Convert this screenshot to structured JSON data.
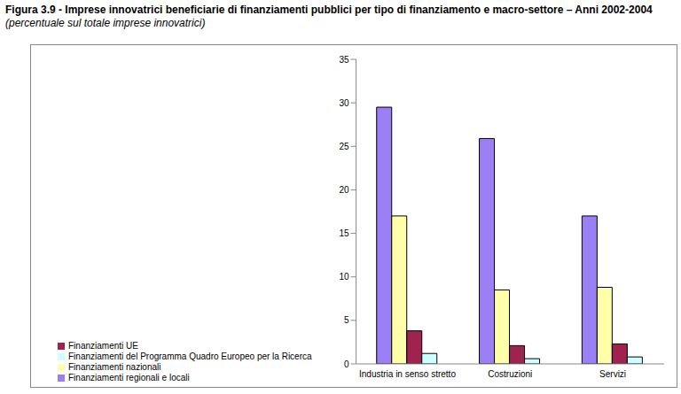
{
  "chart_data": {
    "type": "bar",
    "title": "Figura 3.9 - Imprese innovatrici beneficiarie di finanziamenti pubblici per tipo di finanziamento e macro-settore – Anni 2002-2004",
    "subtitle": "(percentuale sul totale imprese innovatrici)",
    "categories": [
      "Industria in senso stretto",
      "Costruzioni",
      "Servizi"
    ],
    "series": [
      {
        "name": "Finanziamenti regionali e locali",
        "color": "#9b7ff5",
        "values": [
          29.5,
          25.9,
          17.0
        ]
      },
      {
        "name": "Finanziamenti nazionali",
        "color": "#ffffaa",
        "values": [
          17.0,
          8.5,
          8.8
        ]
      },
      {
        "name": "Finanziamenti UE",
        "color": "#a0224f",
        "values": [
          3.8,
          2.1,
          2.3
        ]
      },
      {
        "name": "Finanziamenti del Programma Quadro Europeo per la Ricerca",
        "color": "#ccffff",
        "values": [
          1.2,
          0.6,
          0.8
        ]
      }
    ],
    "ylim": [
      0,
      35
    ],
    "yticks": [
      0,
      5,
      10,
      15,
      20,
      25,
      30,
      35
    ],
    "grid": false,
    "legend": "bottom-left"
  }
}
